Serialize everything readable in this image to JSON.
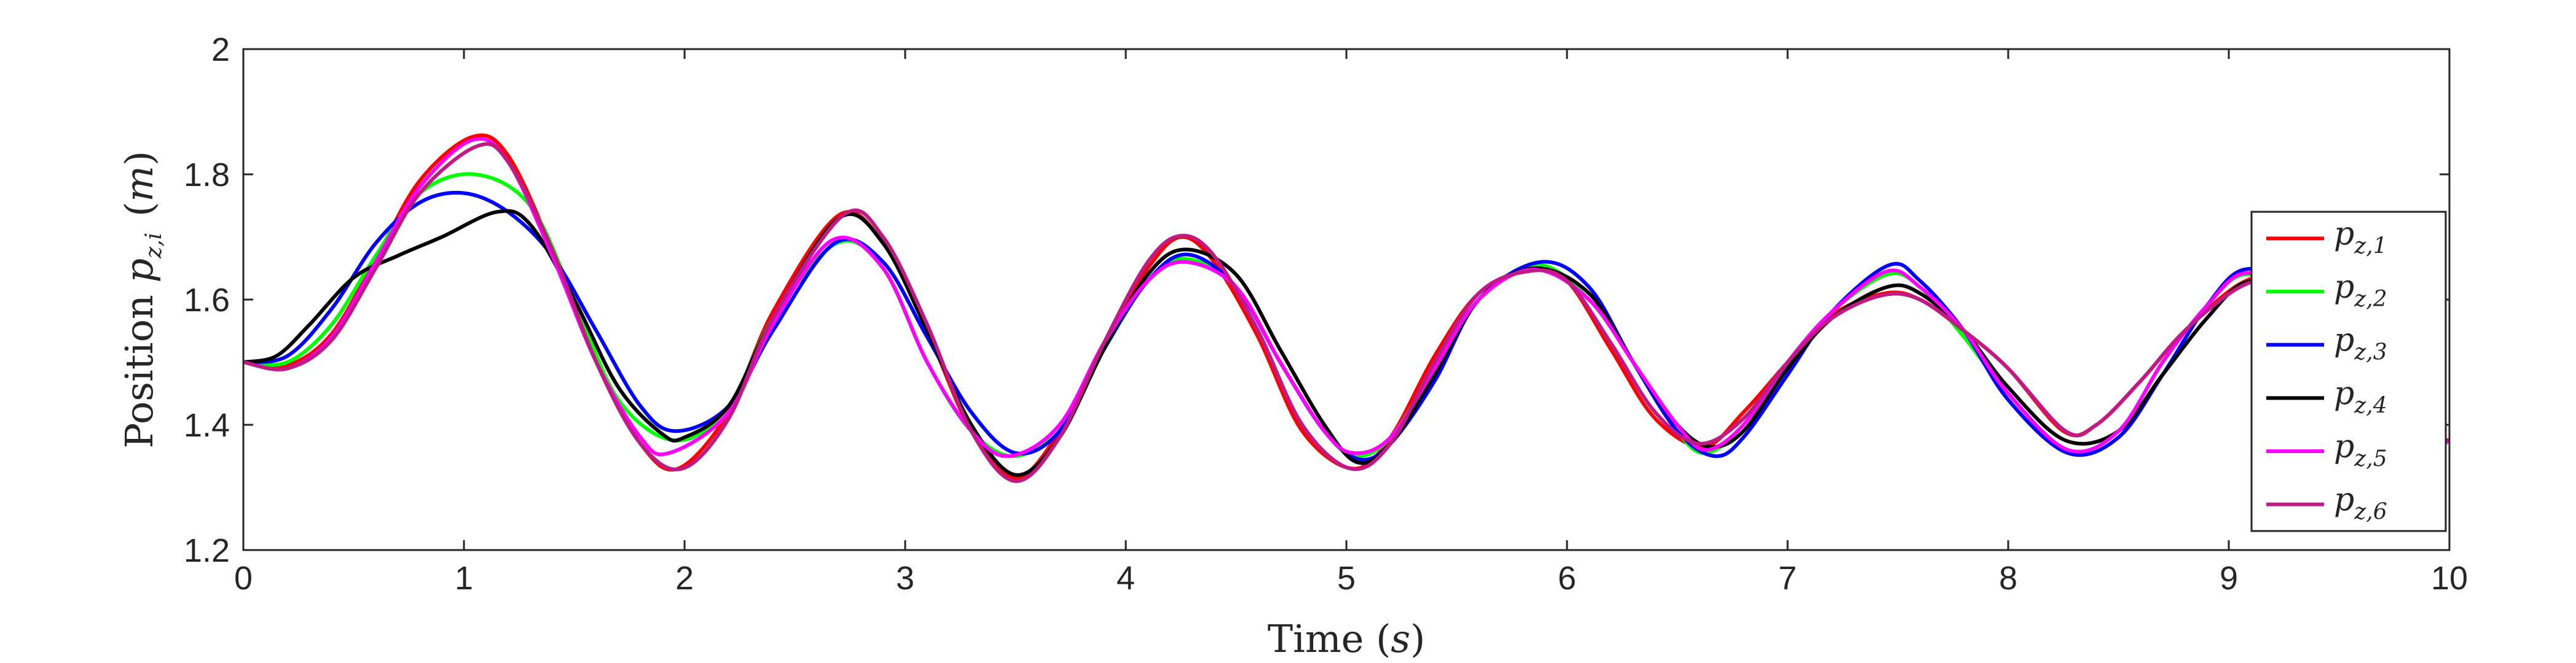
{
  "chart_data": {
    "type": "line",
    "xlabel": "Time (s)",
    "ylabel": "Position p_{z,i} (m)",
    "xlim": [
      0,
      10
    ],
    "ylim": [
      1.2,
      2
    ],
    "xticks": [
      "0",
      "1",
      "2",
      "3",
      "4",
      "5",
      "6",
      "7",
      "8",
      "9",
      "10"
    ],
    "yticks": [
      "1.2",
      "1.4",
      "1.6",
      "1.8",
      "2"
    ],
    "grid": false,
    "legend_position": "right",
    "series": [
      {
        "name": "p_{z,1}",
        "color": "#ff0000",
        "x": [
          0,
          0.2,
          0.4,
          0.6,
          0.8,
          1.04,
          1.2,
          1.4,
          1.6,
          1.8,
          1.97,
          2.2,
          2.4,
          2.7,
          2.9,
          3.1,
          3.3,
          3.5,
          3.7,
          3.9,
          4.1,
          4.25,
          4.4,
          4.6,
          4.8,
          5.03,
          5.2,
          5.4,
          5.6,
          5.83,
          6.0,
          6.2,
          6.4,
          6.62,
          6.8,
          7.0,
          7.2,
          7.44,
          7.6,
          7.8,
          8.0,
          8.25,
          8.4,
          8.6,
          8.8,
          9.05,
          9.2,
          9.4,
          9.6,
          9.8,
          10
        ],
        "y": [
          1.5,
          1.495,
          1.545,
          1.665,
          1.79,
          1.86,
          1.83,
          1.68,
          1.5,
          1.37,
          1.33,
          1.42,
          1.58,
          1.735,
          1.69,
          1.55,
          1.39,
          1.315,
          1.39,
          1.53,
          1.65,
          1.7,
          1.66,
          1.54,
          1.39,
          1.33,
          1.38,
          1.51,
          1.61,
          1.648,
          1.63,
          1.52,
          1.41,
          1.365,
          1.42,
          1.5,
          1.575,
          1.61,
          1.6,
          1.55,
          1.49,
          1.39,
          1.4,
          1.47,
          1.55,
          1.625,
          1.63,
          1.58,
          1.48,
          1.39,
          1.375
        ]
      },
      {
        "name": "p_{z,2}",
        "color": "#00ff00",
        "x": [
          0,
          0.2,
          0.4,
          0.6,
          0.8,
          1.05,
          1.3,
          1.5,
          1.7,
          1.96,
          2.2,
          2.4,
          2.69,
          2.9,
          3.1,
          3.3,
          3.5,
          3.7,
          3.9,
          4.1,
          4.27,
          4.5,
          4.7,
          4.9,
          5.04,
          5.2,
          5.4,
          5.6,
          5.87,
          6.1,
          6.3,
          6.5,
          6.63,
          6.8,
          7.0,
          7.2,
          7.45,
          7.6,
          7.8,
          8.0,
          8.27,
          8.5,
          8.7,
          8.9,
          9.07,
          9.3,
          9.5,
          9.7,
          9.9,
          10
        ],
        "y": [
          1.5,
          1.5,
          1.56,
          1.67,
          1.77,
          1.8,
          1.75,
          1.6,
          1.44,
          1.375,
          1.43,
          1.57,
          1.69,
          1.65,
          1.5,
          1.39,
          1.35,
          1.4,
          1.52,
          1.63,
          1.665,
          1.62,
          1.5,
          1.39,
          1.35,
          1.38,
          1.49,
          1.6,
          1.655,
          1.6,
          1.5,
          1.39,
          1.355,
          1.4,
          1.5,
          1.58,
          1.64,
          1.62,
          1.54,
          1.45,
          1.36,
          1.39,
          1.5,
          1.59,
          1.64,
          1.61,
          1.51,
          1.41,
          1.365,
          1.375
        ]
      },
      {
        "name": "p_{z,3}",
        "color": "#0000ff",
        "x": [
          0,
          0.2,
          0.4,
          0.6,
          0.8,
          1.0,
          1.2,
          1.4,
          1.6,
          1.8,
          1.96,
          2.2,
          2.4,
          2.68,
          2.9,
          3.1,
          3.3,
          3.5,
          3.7,
          3.9,
          4.1,
          4.28,
          4.5,
          4.7,
          4.9,
          5.06,
          5.2,
          5.4,
          5.6,
          5.88,
          6.1,
          6.3,
          6.5,
          6.67,
          6.8,
          7.0,
          7.2,
          7.46,
          7.6,
          7.8,
          8.0,
          8.27,
          8.5,
          8.7,
          8.9,
          9.07,
          9.3,
          9.5,
          9.7,
          9.9,
          10
        ],
        "y": [
          1.5,
          1.51,
          1.585,
          1.69,
          1.755,
          1.77,
          1.74,
          1.67,
          1.55,
          1.43,
          1.39,
          1.43,
          1.55,
          1.69,
          1.66,
          1.54,
          1.42,
          1.355,
          1.39,
          1.52,
          1.63,
          1.672,
          1.62,
          1.5,
          1.39,
          1.345,
          1.37,
          1.47,
          1.6,
          1.66,
          1.62,
          1.5,
          1.39,
          1.35,
          1.38,
          1.48,
          1.58,
          1.655,
          1.63,
          1.55,
          1.44,
          1.355,
          1.38,
          1.48,
          1.59,
          1.648,
          1.62,
          1.52,
          1.42,
          1.365,
          1.375
        ]
      },
      {
        "name": "p_{z,4}",
        "color": "#000000",
        "x": [
          0,
          0.15,
          0.3,
          0.5,
          0.7,
          0.9,
          1.15,
          1.3,
          1.5,
          1.7,
          1.9,
          2.0,
          2.2,
          2.4,
          2.7,
          2.9,
          3.1,
          3.3,
          3.5,
          3.7,
          3.9,
          4.1,
          4.27,
          4.5,
          4.7,
          4.9,
          5.05,
          5.2,
          5.4,
          5.6,
          5.85,
          6.1,
          6.3,
          6.5,
          6.65,
          6.8,
          7.0,
          7.2,
          7.45,
          7.6,
          7.8,
          8.0,
          8.26,
          8.5,
          8.7,
          8.9,
          9.08,
          9.3,
          9.5,
          9.7,
          9.9,
          10
        ],
        "y": [
          1.5,
          1.51,
          1.56,
          1.635,
          1.67,
          1.7,
          1.74,
          1.72,
          1.6,
          1.46,
          1.385,
          1.38,
          1.43,
          1.57,
          1.73,
          1.69,
          1.55,
          1.4,
          1.32,
          1.38,
          1.52,
          1.64,
          1.68,
          1.64,
          1.52,
          1.4,
          1.34,
          1.37,
          1.48,
          1.6,
          1.65,
          1.61,
          1.5,
          1.4,
          1.365,
          1.39,
          1.49,
          1.57,
          1.62,
          1.61,
          1.55,
          1.46,
          1.375,
          1.39,
          1.48,
          1.57,
          1.628,
          1.61,
          1.52,
          1.42,
          1.37,
          1.375
        ]
      },
      {
        "name": "p_{z,5}",
        "color": "#ff00ff",
        "x": [
          0,
          0.2,
          0.4,
          0.6,
          0.8,
          1.04,
          1.2,
          1.4,
          1.6,
          1.8,
          1.93,
          2.2,
          2.4,
          2.67,
          2.9,
          3.1,
          3.3,
          3.47,
          3.7,
          3.9,
          4.1,
          4.27,
          4.5,
          4.7,
          4.9,
          5.03,
          5.2,
          5.4,
          5.6,
          5.85,
          6.1,
          6.3,
          6.5,
          6.63,
          6.8,
          7.0,
          7.2,
          7.45,
          7.6,
          7.8,
          8.0,
          8.27,
          8.5,
          8.7,
          8.9,
          9.07,
          9.3,
          9.5,
          9.7,
          9.9,
          10
        ],
        "y": [
          1.5,
          1.49,
          1.54,
          1.66,
          1.78,
          1.855,
          1.82,
          1.67,
          1.5,
          1.38,
          1.355,
          1.42,
          1.56,
          1.695,
          1.65,
          1.5,
          1.39,
          1.35,
          1.4,
          1.53,
          1.63,
          1.66,
          1.62,
          1.5,
          1.39,
          1.355,
          1.38,
          1.49,
          1.6,
          1.648,
          1.6,
          1.5,
          1.4,
          1.36,
          1.4,
          1.5,
          1.58,
          1.645,
          1.62,
          1.55,
          1.45,
          1.36,
          1.39,
          1.5,
          1.59,
          1.642,
          1.61,
          1.51,
          1.42,
          1.365,
          1.375
        ]
      },
      {
        "name": "p_{z,6}",
        "color": "#c01a85",
        "x": [
          0,
          0.2,
          0.4,
          0.6,
          0.8,
          1.06,
          1.2,
          1.4,
          1.6,
          1.8,
          1.99,
          2.2,
          2.4,
          2.72,
          2.9,
          3.1,
          3.3,
          3.5,
          3.7,
          3.9,
          4.1,
          4.25,
          4.4,
          4.6,
          4.8,
          5.02,
          5.2,
          5.4,
          5.6,
          5.82,
          6.0,
          6.2,
          6.4,
          6.6,
          6.8,
          7.0,
          7.2,
          7.43,
          7.6,
          7.8,
          8.0,
          8.26,
          8.4,
          8.6,
          8.8,
          9.05,
          9.2,
          9.4,
          9.6,
          9.8,
          10
        ],
        "y": [
          1.5,
          1.49,
          1.535,
          1.65,
          1.77,
          1.845,
          1.82,
          1.68,
          1.5,
          1.37,
          1.33,
          1.41,
          1.57,
          1.735,
          1.7,
          1.56,
          1.39,
          1.31,
          1.38,
          1.53,
          1.66,
          1.702,
          1.67,
          1.55,
          1.4,
          1.33,
          1.37,
          1.5,
          1.61,
          1.645,
          1.63,
          1.53,
          1.42,
          1.37,
          1.41,
          1.5,
          1.57,
          1.607,
          1.6,
          1.55,
          1.49,
          1.39,
          1.4,
          1.47,
          1.55,
          1.62,
          1.625,
          1.58,
          1.48,
          1.39,
          1.375
        ]
      }
    ]
  }
}
